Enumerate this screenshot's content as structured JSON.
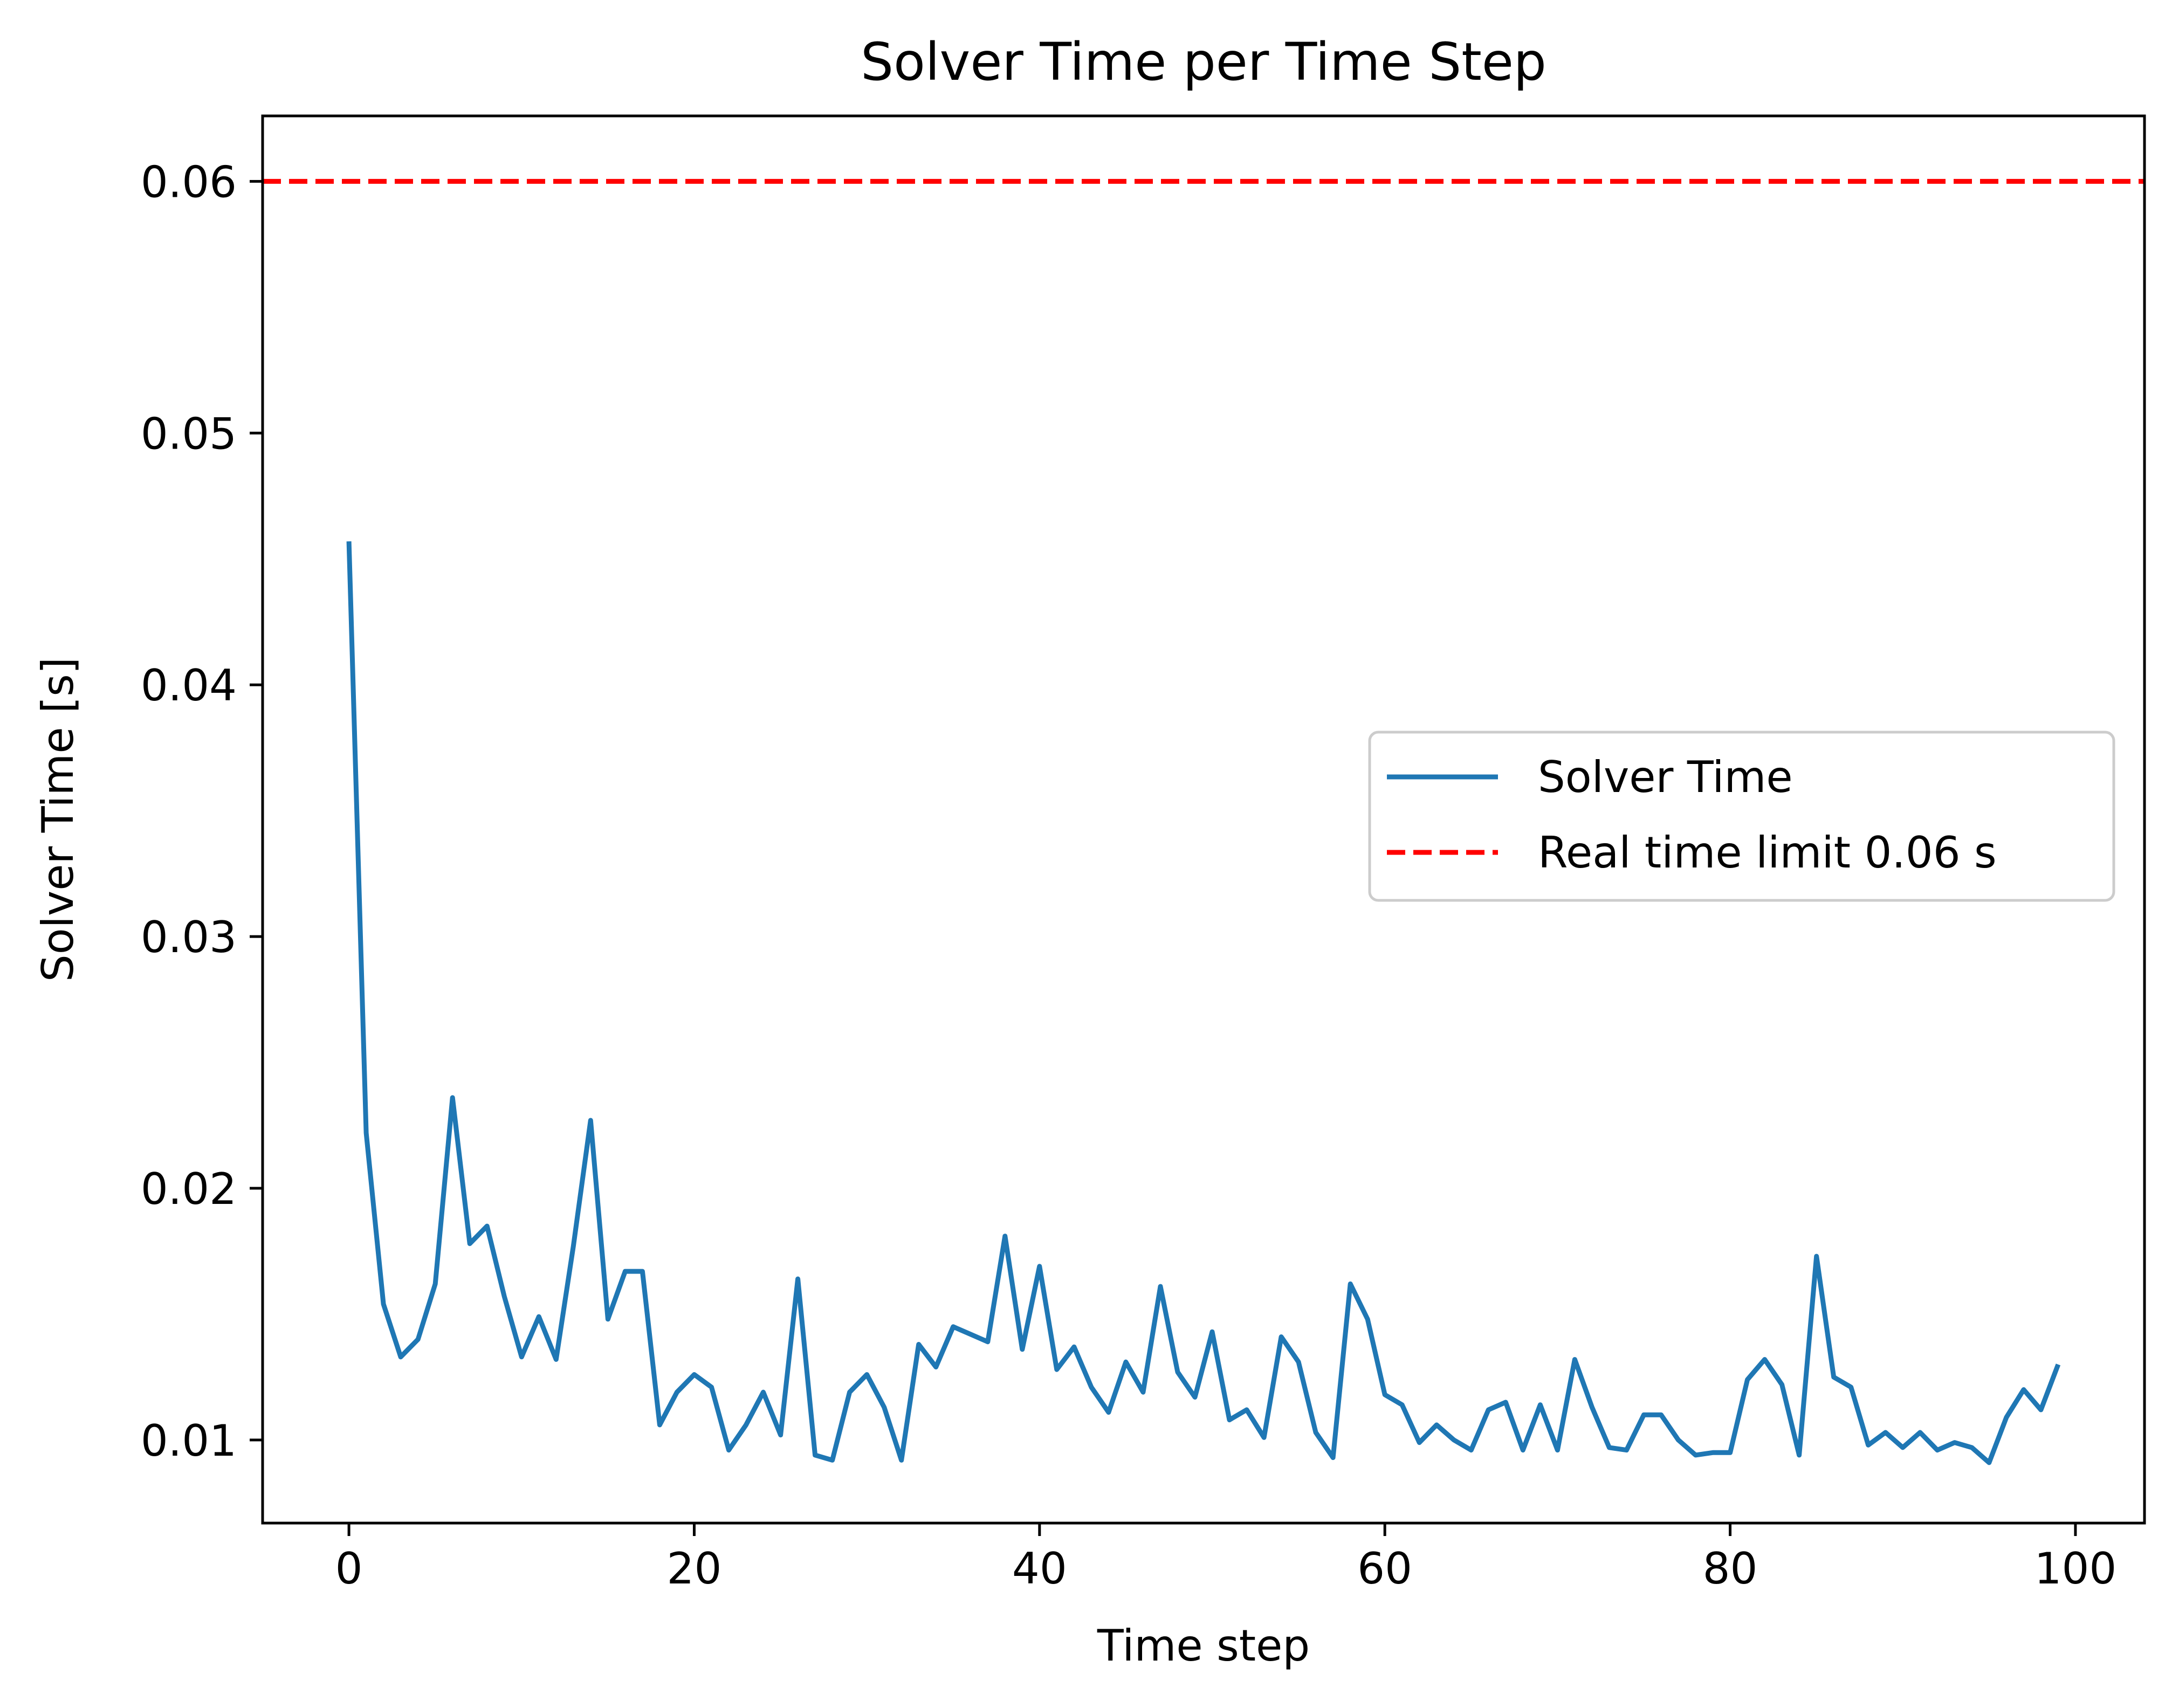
{
  "chart_data": {
    "type": "line",
    "title": "Solver Time per Time Step",
    "xlabel": "Time step",
    "ylabel": "Solver Time [s]",
    "xlim": [
      -5,
      104
    ],
    "ylim": [
      0.0067,
      0.0626
    ],
    "xticks": [
      0,
      20,
      40,
      60,
      80,
      100
    ],
    "xtick_labels": [
      "0",
      "20",
      "40",
      "60",
      "80",
      "100"
    ],
    "yticks": [
      0.01,
      0.02,
      0.03,
      0.04,
      0.05,
      0.06
    ],
    "ytick_labels": [
      "0.01",
      "0.02",
      "0.03",
      "0.04",
      "0.05",
      "0.06"
    ],
    "grid": false,
    "legend_position": "center-right",
    "series": [
      {
        "name": "Solver Time",
        "color": "#1f77b4",
        "style": "solid",
        "x": [
          0,
          1,
          2,
          3,
          4,
          5,
          6,
          7,
          8,
          9,
          10,
          11,
          12,
          13,
          14,
          15,
          16,
          17,
          18,
          19,
          20,
          21,
          22,
          23,
          24,
          25,
          26,
          27,
          28,
          29,
          30,
          31,
          32,
          33,
          34,
          35,
          36,
          37,
          38,
          39,
          40,
          41,
          42,
          43,
          44,
          45,
          46,
          47,
          48,
          49,
          50,
          51,
          52,
          53,
          54,
          55,
          56,
          57,
          58,
          59,
          60,
          61,
          62,
          63,
          64,
          65,
          66,
          67,
          68,
          69,
          70,
          71,
          72,
          73,
          74,
          75,
          76,
          77,
          78,
          79,
          80,
          81,
          82,
          83,
          84,
          85,
          86,
          87,
          88,
          89,
          90,
          91,
          92,
          93,
          94,
          95,
          96,
          97,
          98,
          99
        ],
        "y": [
          0.0457,
          0.0222,
          0.0154,
          0.0133,
          0.014,
          0.0162,
          0.0236,
          0.0178,
          0.0185,
          0.0157,
          0.0133,
          0.0149,
          0.0132,
          0.0177,
          0.0227,
          0.0148,
          0.0167,
          0.0167,
          0.0106,
          0.0119,
          0.0126,
          0.0121,
          0.0096,
          0.0106,
          0.0119,
          0.0102,
          0.0164,
          0.0094,
          0.0092,
          0.0119,
          0.0126,
          0.0113,
          0.0092,
          0.0138,
          0.0129,
          0.0145,
          0.0142,
          0.0139,
          0.0181,
          0.0136,
          0.0169,
          0.0128,
          0.0137,
          0.0121,
          0.0111,
          0.0131,
          0.0119,
          0.0161,
          0.0127,
          0.0117,
          0.0143,
          0.0108,
          0.0112,
          0.0101,
          0.0141,
          0.0131,
          0.0103,
          0.0093,
          0.0162,
          0.0148,
          0.0118,
          0.0114,
          0.0099,
          0.0106,
          0.01,
          0.0096,
          0.0112,
          0.0115,
          0.0096,
          0.0114,
          0.0096,
          0.0132,
          0.0113,
          0.0097,
          0.0096,
          0.011,
          0.011,
          0.01,
          0.0094,
          0.0095,
          0.0095,
          0.0124,
          0.0132,
          0.0122,
          0.0094,
          0.0173,
          0.0125,
          0.0121,
          0.0098,
          0.0103,
          0.0097,
          0.0103,
          0.0096,
          0.0099,
          0.0097,
          0.0091,
          0.0109,
          0.012,
          0.0112,
          0.013
        ]
      },
      {
        "name": "Real time limit 0.06 s",
        "color": "#ff0000",
        "style": "dashed",
        "type": "hline",
        "y": 0.06
      }
    ]
  }
}
